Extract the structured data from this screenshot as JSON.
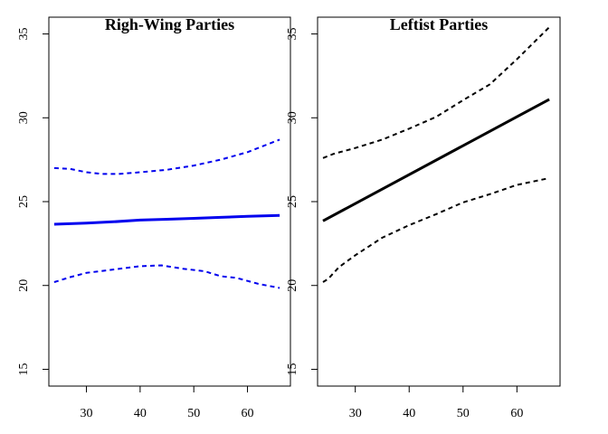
{
  "chart_data": [
    {
      "type": "line",
      "title": "Righ-Wing Parties",
      "xlabel": "",
      "ylabel": "",
      "xlim": [
        23,
        68
      ],
      "ylim": [
        14,
        36
      ],
      "xticks": [
        30,
        40,
        50,
        60
      ],
      "yticks": [
        15,
        20,
        25,
        30,
        35
      ],
      "color": "#0000ee",
      "series": [
        {
          "style": "solid",
          "x": [
            24,
            30,
            35,
            40,
            45,
            50,
            55,
            60,
            66
          ],
          "y": [
            23.65,
            23.72,
            23.8,
            23.9,
            23.95,
            24.0,
            24.06,
            24.12,
            24.18
          ]
        },
        {
          "style": "dashed",
          "x": [
            24,
            27,
            30,
            33,
            36,
            40,
            45,
            50,
            55,
            60,
            66
          ],
          "y": [
            27.0,
            26.95,
            26.75,
            26.65,
            26.65,
            26.75,
            26.9,
            27.15,
            27.5,
            27.95,
            28.7
          ]
        },
        {
          "style": "dashed",
          "x": [
            24,
            27,
            30,
            35,
            40,
            44,
            48,
            52,
            55,
            58,
            62,
            66
          ],
          "y": [
            20.2,
            20.5,
            20.75,
            20.95,
            21.15,
            21.2,
            21.0,
            20.85,
            20.55,
            20.45,
            20.1,
            19.85
          ]
        }
      ]
    },
    {
      "type": "line",
      "title": "Leftist Parties",
      "xlabel": "",
      "ylabel": "",
      "xlim": [
        23,
        68
      ],
      "ylim": [
        14,
        36
      ],
      "xticks": [
        30,
        40,
        50,
        60
      ],
      "yticks": [
        15,
        20,
        25,
        30,
        35
      ],
      "color": "#000000",
      "series": [
        {
          "style": "solid",
          "x": [
            24,
            66
          ],
          "y": [
            23.85,
            31.1
          ]
        },
        {
          "style": "dashed",
          "x": [
            24,
            26,
            30,
            35,
            40,
            45,
            50,
            55,
            60,
            66
          ],
          "y": [
            27.6,
            27.85,
            28.2,
            28.7,
            29.35,
            30.05,
            31.05,
            32.0,
            33.5,
            35.4
          ]
        },
        {
          "style": "dashed",
          "x": [
            24,
            25,
            27,
            30,
            35,
            40,
            45,
            50,
            55,
            60,
            66
          ],
          "y": [
            20.2,
            20.4,
            21.1,
            21.8,
            22.85,
            23.6,
            24.25,
            24.95,
            25.45,
            26.0,
            26.4
          ]
        }
      ]
    }
  ]
}
